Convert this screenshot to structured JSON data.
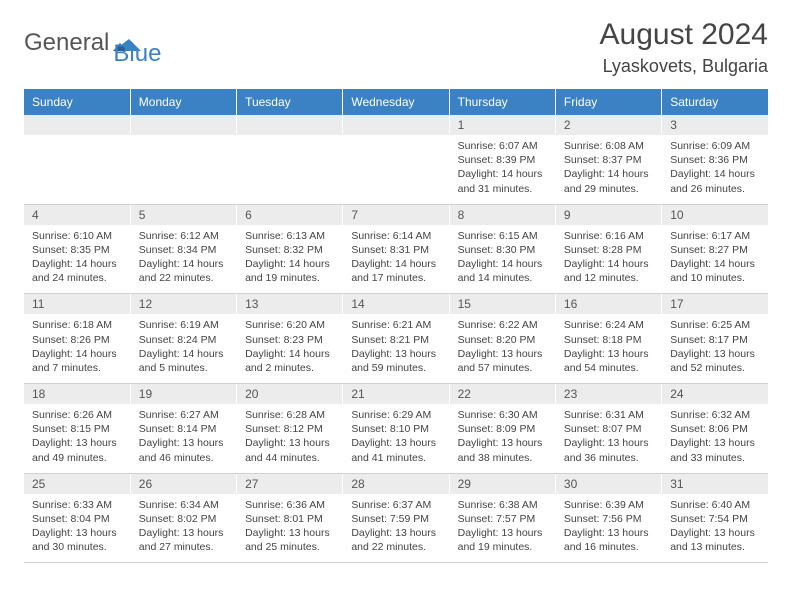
{
  "logo": {
    "text1": "General",
    "text2": "Blue"
  },
  "title": "August 2024",
  "location": "Lyaskovets, Bulgaria",
  "colors": {
    "header_bg": "#3b82c4",
    "header_text": "#ffffff",
    "daynum_bg": "#ececec",
    "body_text": "#444444",
    "page_bg": "#ffffff",
    "divider": "#d0d0d0"
  },
  "dayHeaders": [
    "Sunday",
    "Monday",
    "Tuesday",
    "Wednesday",
    "Thursday",
    "Friday",
    "Saturday"
  ],
  "weeks": [
    [
      null,
      null,
      null,
      null,
      {
        "n": "1",
        "sunrise": "6:07 AM",
        "sunset": "8:39 PM",
        "daylight": "14 hours and 31 minutes."
      },
      {
        "n": "2",
        "sunrise": "6:08 AM",
        "sunset": "8:37 PM",
        "daylight": "14 hours and 29 minutes."
      },
      {
        "n": "3",
        "sunrise": "6:09 AM",
        "sunset": "8:36 PM",
        "daylight": "14 hours and 26 minutes."
      }
    ],
    [
      {
        "n": "4",
        "sunrise": "6:10 AM",
        "sunset": "8:35 PM",
        "daylight": "14 hours and 24 minutes."
      },
      {
        "n": "5",
        "sunrise": "6:12 AM",
        "sunset": "8:34 PM",
        "daylight": "14 hours and 22 minutes."
      },
      {
        "n": "6",
        "sunrise": "6:13 AM",
        "sunset": "8:32 PM",
        "daylight": "14 hours and 19 minutes."
      },
      {
        "n": "7",
        "sunrise": "6:14 AM",
        "sunset": "8:31 PM",
        "daylight": "14 hours and 17 minutes."
      },
      {
        "n": "8",
        "sunrise": "6:15 AM",
        "sunset": "8:30 PM",
        "daylight": "14 hours and 14 minutes."
      },
      {
        "n": "9",
        "sunrise": "6:16 AM",
        "sunset": "8:28 PM",
        "daylight": "14 hours and 12 minutes."
      },
      {
        "n": "10",
        "sunrise": "6:17 AM",
        "sunset": "8:27 PM",
        "daylight": "14 hours and 10 minutes."
      }
    ],
    [
      {
        "n": "11",
        "sunrise": "6:18 AM",
        "sunset": "8:26 PM",
        "daylight": "14 hours and 7 minutes."
      },
      {
        "n": "12",
        "sunrise": "6:19 AM",
        "sunset": "8:24 PM",
        "daylight": "14 hours and 5 minutes."
      },
      {
        "n": "13",
        "sunrise": "6:20 AM",
        "sunset": "8:23 PM",
        "daylight": "14 hours and 2 minutes."
      },
      {
        "n": "14",
        "sunrise": "6:21 AM",
        "sunset": "8:21 PM",
        "daylight": "13 hours and 59 minutes."
      },
      {
        "n": "15",
        "sunrise": "6:22 AM",
        "sunset": "8:20 PM",
        "daylight": "13 hours and 57 minutes."
      },
      {
        "n": "16",
        "sunrise": "6:24 AM",
        "sunset": "8:18 PM",
        "daylight": "13 hours and 54 minutes."
      },
      {
        "n": "17",
        "sunrise": "6:25 AM",
        "sunset": "8:17 PM",
        "daylight": "13 hours and 52 minutes."
      }
    ],
    [
      {
        "n": "18",
        "sunrise": "6:26 AM",
        "sunset": "8:15 PM",
        "daylight": "13 hours and 49 minutes."
      },
      {
        "n": "19",
        "sunrise": "6:27 AM",
        "sunset": "8:14 PM",
        "daylight": "13 hours and 46 minutes."
      },
      {
        "n": "20",
        "sunrise": "6:28 AM",
        "sunset": "8:12 PM",
        "daylight": "13 hours and 44 minutes."
      },
      {
        "n": "21",
        "sunrise": "6:29 AM",
        "sunset": "8:10 PM",
        "daylight": "13 hours and 41 minutes."
      },
      {
        "n": "22",
        "sunrise": "6:30 AM",
        "sunset": "8:09 PM",
        "daylight": "13 hours and 38 minutes."
      },
      {
        "n": "23",
        "sunrise": "6:31 AM",
        "sunset": "8:07 PM",
        "daylight": "13 hours and 36 minutes."
      },
      {
        "n": "24",
        "sunrise": "6:32 AM",
        "sunset": "8:06 PM",
        "daylight": "13 hours and 33 minutes."
      }
    ],
    [
      {
        "n": "25",
        "sunrise": "6:33 AM",
        "sunset": "8:04 PM",
        "daylight": "13 hours and 30 minutes."
      },
      {
        "n": "26",
        "sunrise": "6:34 AM",
        "sunset": "8:02 PM",
        "daylight": "13 hours and 27 minutes."
      },
      {
        "n": "27",
        "sunrise": "6:36 AM",
        "sunset": "8:01 PM",
        "daylight": "13 hours and 25 minutes."
      },
      {
        "n": "28",
        "sunrise": "6:37 AM",
        "sunset": "7:59 PM",
        "daylight": "13 hours and 22 minutes."
      },
      {
        "n": "29",
        "sunrise": "6:38 AM",
        "sunset": "7:57 PM",
        "daylight": "13 hours and 19 minutes."
      },
      {
        "n": "30",
        "sunrise": "6:39 AM",
        "sunset": "7:56 PM",
        "daylight": "13 hours and 16 minutes."
      },
      {
        "n": "31",
        "sunrise": "6:40 AM",
        "sunset": "7:54 PM",
        "daylight": "13 hours and 13 minutes."
      }
    ]
  ],
  "labels": {
    "sunrise": "Sunrise: ",
    "sunset": "Sunset: ",
    "daylight": "Daylight: "
  }
}
